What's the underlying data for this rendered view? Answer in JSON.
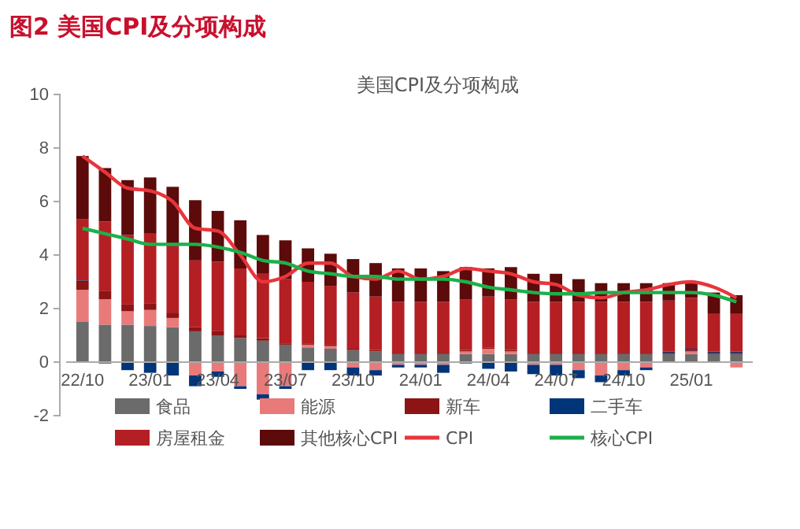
{
  "chart_data": {
    "type": "bar",
    "title": "图2  美国CPI及分项构成",
    "subtitle": "美国CPI及分项构成",
    "stacked": true,
    "categories": [
      "22/10",
      null,
      null,
      "23/01",
      null,
      null,
      "23/04",
      null,
      null,
      "23/07",
      null,
      null,
      "23/10",
      null,
      null,
      "24/01",
      null,
      null,
      "24/04",
      null,
      null,
      "24/07",
      null,
      null,
      "24/10",
      null,
      null,
      "25/01",
      null,
      null
    ],
    "ylim": [
      -2,
      10
    ],
    "yticks": [
      -2,
      0,
      2,
      4,
      6,
      8,
      10
    ],
    "grid": false,
    "legend": "bottom",
    "series": [
      {
        "name": "食品",
        "color": "#6b6b6b",
        "values": [
          1.5,
          1.4,
          1.4,
          1.35,
          1.3,
          1.15,
          1.0,
          0.9,
          0.8,
          0.65,
          0.55,
          0.5,
          0.45,
          0.4,
          0.3,
          0.3,
          0.3,
          0.3,
          0.3,
          0.3,
          0.3,
          0.3,
          0.3,
          0.3,
          0.3,
          0.3,
          0.3,
          0.3,
          0.3,
          0.3
        ]
      },
      {
        "name": "能源",
        "color": "#e97a7a",
        "values": [
          1.2,
          0.95,
          0.5,
          0.6,
          0.35,
          -0.5,
          -0.35,
          -0.9,
          -1.2,
          -0.9,
          0.1,
          0.1,
          -0.2,
          -0.3,
          -0.1,
          -0.1,
          -0.1,
          0.1,
          0.2,
          0.1,
          -0.1,
          -0.1,
          -0.3,
          -0.5,
          -0.3,
          -0.2,
          0.0,
          0.1,
          0.0,
          -0.2
        ]
      },
      {
        "name": "新车",
        "color": "#8c1414",
        "values": [
          0.3,
          0.3,
          0.25,
          0.25,
          0.2,
          0.15,
          0.15,
          0.1,
          0.1,
          0.05,
          0.05,
          0.05,
          0.05,
          0.05,
          0.05,
          0.05,
          0.05,
          0.05,
          0.05,
          0.05,
          0.05,
          0.05,
          0.05,
          0.05,
          0.05,
          0.05,
          0.05,
          0.05,
          0.05,
          0.05
        ]
      },
      {
        "name": "二手车",
        "color": "#00357a",
        "values": [
          0.05,
          -0.05,
          -0.3,
          -0.4,
          -0.5,
          -0.4,
          -0.2,
          -0.1,
          -0.2,
          -0.1,
          -0.3,
          -0.3,
          -0.3,
          -0.2,
          -0.1,
          -0.1,
          -0.3,
          -0.05,
          -0.25,
          -0.35,
          -0.35,
          -0.4,
          -0.3,
          -0.25,
          -0.2,
          -0.1,
          0.05,
          0.05,
          0.05,
          0.05
        ]
      },
      {
        "name": "房屋租金",
        "color": "#b41f24",
        "values": [
          2.3,
          2.6,
          2.6,
          2.6,
          2.5,
          2.5,
          2.6,
          2.5,
          2.4,
          2.4,
          2.3,
          2.2,
          2.1,
          2.0,
          1.9,
          1.9,
          1.9,
          1.9,
          1.9,
          1.9,
          1.9,
          1.9,
          1.9,
          1.9,
          1.9,
          1.9,
          1.9,
          1.9,
          1.4,
          1.4
        ]
      },
      {
        "name": "其他核心CPI",
        "color": "#5c0a0a",
        "values": [
          2.35,
          2.0,
          2.05,
          2.1,
          2.2,
          2.25,
          1.9,
          1.8,
          1.45,
          1.45,
          1.25,
          1.2,
          1.25,
          1.25,
          1.25,
          1.25,
          1.15,
          1.2,
          1.05,
          1.2,
          1.05,
          1.05,
          0.85,
          0.7,
          0.7,
          0.7,
          0.65,
          0.55,
          0.8,
          0.7
        ]
      },
      {
        "name": "CPI",
        "type": "line",
        "color": "#e8353b",
        "values": [
          7.7,
          7.1,
          6.5,
          6.4,
          6.0,
          5.0,
          4.9,
          4.0,
          3.0,
          3.2,
          3.7,
          3.7,
          3.2,
          3.1,
          3.4,
          3.1,
          3.2,
          3.5,
          3.4,
          3.3,
          3.0,
          2.9,
          2.5,
          2.4,
          2.6,
          2.7,
          2.9,
          3.0,
          2.8,
          2.4
        ]
      },
      {
        "name": "核心CPI",
        "type": "line",
        "color": "#1db04b",
        "values": [
          5.0,
          4.8,
          4.6,
          4.4,
          4.4,
          4.4,
          4.3,
          4.1,
          3.8,
          3.7,
          3.4,
          3.3,
          3.2,
          3.2,
          3.1,
          3.1,
          3.1,
          3.0,
          2.8,
          2.7,
          2.6,
          2.55,
          2.55,
          2.6,
          2.6,
          2.6,
          2.6,
          2.6,
          2.5,
          2.25
        ]
      }
    ]
  }
}
